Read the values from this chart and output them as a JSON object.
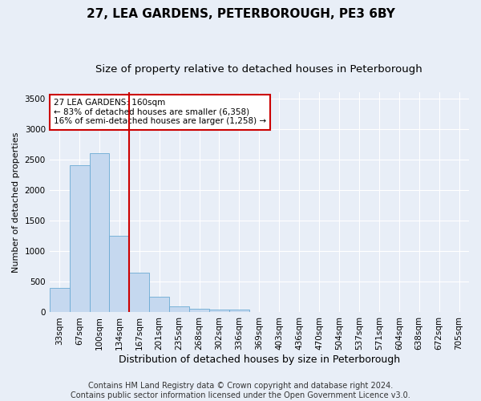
{
  "title": "27, LEA GARDENS, PETERBOROUGH, PE3 6BY",
  "subtitle": "Size of property relative to detached houses in Peterborough",
  "xlabel": "Distribution of detached houses by size in Peterborough",
  "ylabel": "Number of detached properties",
  "categories": [
    "33sqm",
    "67sqm",
    "100sqm",
    "134sqm",
    "167sqm",
    "201sqm",
    "235sqm",
    "268sqm",
    "302sqm",
    "336sqm",
    "369sqm",
    "403sqm",
    "436sqm",
    "470sqm",
    "504sqm",
    "537sqm",
    "571sqm",
    "604sqm",
    "638sqm",
    "672sqm",
    "705sqm"
  ],
  "values": [
    400,
    2400,
    2600,
    1250,
    650,
    250,
    100,
    60,
    50,
    50,
    10,
    5,
    0,
    0,
    0,
    0,
    0,
    0,
    0,
    0,
    0
  ],
  "bar_color": "#c5d8ef",
  "bar_edge_color": "#6aaad4",
  "vline_x_index": 3.5,
  "vline_color": "#cc0000",
  "annotation_text": "27 LEA GARDENS: 160sqm\n← 83% of detached houses are smaller (6,358)\n16% of semi-detached houses are larger (1,258) →",
  "annotation_box_facecolor": "#ffffff",
  "annotation_box_edgecolor": "#cc0000",
  "ylim": [
    0,
    3600
  ],
  "yticks": [
    0,
    500,
    1000,
    1500,
    2000,
    2500,
    3000,
    3500
  ],
  "footer": "Contains HM Land Registry data © Crown copyright and database right 2024.\nContains public sector information licensed under the Open Government Licence v3.0.",
  "title_fontsize": 11,
  "subtitle_fontsize": 9.5,
  "xlabel_fontsize": 9,
  "ylabel_fontsize": 8,
  "tick_fontsize": 7.5,
  "annotation_fontsize": 7.5,
  "footer_fontsize": 7,
  "bg_color": "#e8eef7",
  "plot_bg_color": "#e8eef7",
  "grid_color": "#ffffff"
}
